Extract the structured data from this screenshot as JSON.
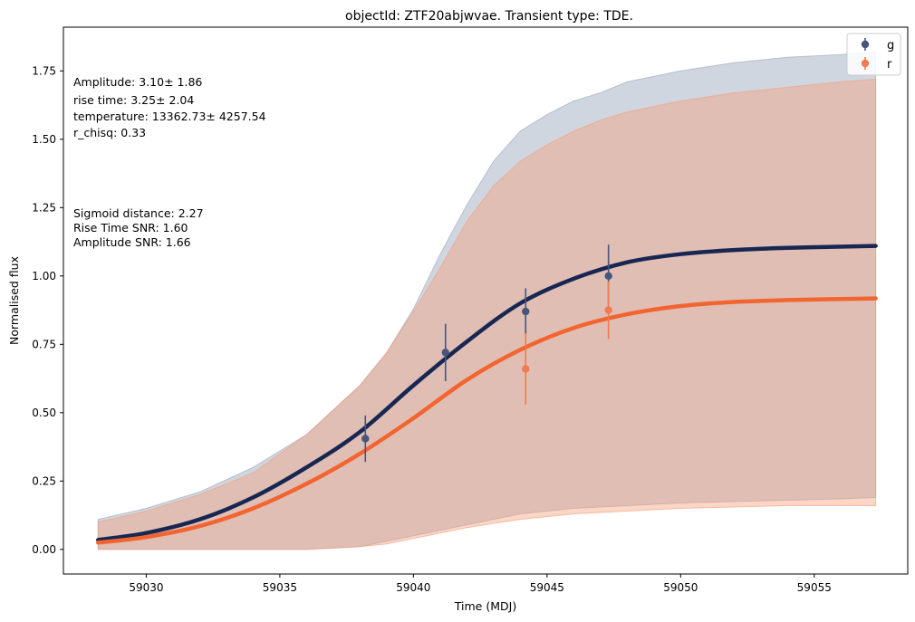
{
  "chart_data": {
    "type": "line",
    "title": "objectId: ZTF20abjwvae. Transient type: TDE.",
    "xlabel": "Time (MDJ)",
    "ylabel": "Normalised flux",
    "xlim": [
      59026.9,
      59058.5
    ],
    "ylim": [
      -0.09,
      1.91
    ],
    "xticks": [
      59030,
      59035,
      59040,
      59045,
      59050,
      59055
    ],
    "yticks": [
      0.0,
      0.25,
      0.5,
      0.75,
      1.0,
      1.25,
      1.5,
      1.75
    ],
    "ytick_labels": [
      "0.00",
      "0.25",
      "0.50",
      "0.75",
      "1.00",
      "1.25",
      "1.50",
      "1.75"
    ],
    "grid": false,
    "legend_position": "top-right",
    "annotations": [
      "Amplitude: 3.10± 1.86",
      "rise time: 3.25± 2.04",
      "temperature: 13362.73± 4257.54",
      "r_chisq: 0.33",
      "Sigmoid distance: 2.27",
      "Rise Time SNR: 1.60",
      "Amplitude SNR: 1.66"
    ],
    "series": [
      {
        "name": "g",
        "color": "#172752",
        "fit": {
          "x": [
            59028.2,
            59030,
            59032,
            59034,
            59036,
            59038,
            59040,
            59042,
            59044,
            59046,
            59048,
            59050,
            59052,
            59054,
            59057.3
          ],
          "y": [
            0.035,
            0.06,
            0.11,
            0.19,
            0.3,
            0.43,
            0.6,
            0.76,
            0.9,
            0.99,
            1.05,
            1.08,
            1.095,
            1.103,
            1.11
          ]
        },
        "band": {
          "x": [
            59028.2,
            59030,
            59032,
            59034,
            59036,
            59038,
            59039,
            59040,
            59041,
            59042,
            59043,
            59044,
            59045,
            59046,
            59047,
            59048,
            59050,
            59052,
            59054,
            59056,
            59057.3
          ],
          "lower": [
            0.0,
            0.0,
            0.0,
            0.0,
            0.0,
            0.01,
            0.03,
            0.05,
            0.07,
            0.09,
            0.11,
            0.13,
            0.14,
            0.15,
            0.155,
            0.16,
            0.17,
            0.175,
            0.18,
            0.185,
            0.19
          ],
          "upper": [
            0.11,
            0.15,
            0.21,
            0.3,
            0.42,
            0.6,
            0.72,
            0.88,
            1.08,
            1.26,
            1.42,
            1.53,
            1.59,
            1.64,
            1.67,
            1.71,
            1.75,
            1.78,
            1.8,
            1.81,
            1.82
          ]
        },
        "points": {
          "x": [
            59038.2,
            59041.2,
            59044.2,
            59047.3
          ],
          "y": [
            0.405,
            0.72,
            0.87,
            1.0
          ],
          "yerr": [
            0.085,
            0.105,
            0.085,
            0.115
          ]
        }
      },
      {
        "name": "r",
        "color": "#f26430",
        "fit": {
          "x": [
            59028.2,
            59030,
            59032,
            59034,
            59036,
            59038,
            59040,
            59042,
            59044,
            59046,
            59048,
            59050,
            59052,
            59054,
            59057.3
          ],
          "y": [
            0.025,
            0.045,
            0.085,
            0.15,
            0.24,
            0.35,
            0.48,
            0.62,
            0.73,
            0.81,
            0.86,
            0.89,
            0.905,
            0.912,
            0.918
          ]
        },
        "band": {
          "x": [
            59028.2,
            59030,
            59032,
            59034,
            59036,
            59038,
            59039,
            59040,
            59041,
            59042,
            59043,
            59044,
            59045,
            59046,
            59047,
            59048,
            59050,
            59052,
            59054,
            59056,
            59057.3
          ],
          "lower": [
            0.0,
            0.0,
            0.0,
            0.0,
            0.0,
            0.01,
            0.02,
            0.04,
            0.06,
            0.08,
            0.095,
            0.11,
            0.12,
            0.13,
            0.135,
            0.14,
            0.15,
            0.155,
            0.16,
            0.16,
            0.16
          ],
          "upper": [
            0.1,
            0.14,
            0.2,
            0.28,
            0.42,
            0.6,
            0.72,
            0.87,
            1.03,
            1.2,
            1.33,
            1.42,
            1.48,
            1.53,
            1.57,
            1.6,
            1.64,
            1.67,
            1.69,
            1.71,
            1.72
          ]
        },
        "points": {
          "x": [
            59038.2,
            59041.2,
            59044.2,
            59047.3
          ],
          "y": [
            0.0,
            0.0,
            0.66,
            0.875
          ],
          "yerr": [
            0.0,
            0.0,
            0.13,
            0.105
          ],
          "visible": [
            false,
            false,
            true,
            true
          ]
        }
      }
    ]
  }
}
